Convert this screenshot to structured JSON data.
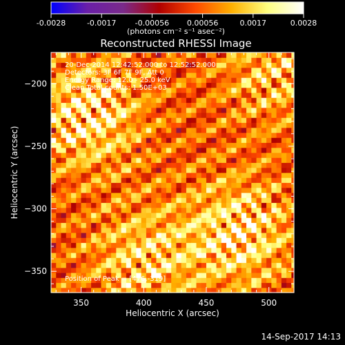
{
  "chart_data": {
    "type": "heatmap",
    "title": "Reconstructed RHESSI Image",
    "xlabel": "Heliocentric X (arcsec)",
    "ylabel": "Heliocentric Y (arcsec)",
    "xlim": [
      326,
      520
    ],
    "ylim": [
      -367,
      -175
    ],
    "x_ticks": [
      350,
      400,
      450,
      500
    ],
    "y_ticks": [
      -200,
      -250,
      -300,
      -350
    ],
    "colorbar": {
      "range": [
        -0.0028,
        0.0028
      ],
      "ticks": [
        "-0.0028",
        "-0.0017",
        "-0.00056",
        "0.00056",
        "0.0017",
        "0.0028"
      ],
      "unit_label": "(photons cm⁻² s⁻¹ asec⁻²)",
      "colors": [
        "#0000ff",
        "#6a1fa8",
        "#7a2a8a",
        "#b00000",
        "#ff4a00",
        "#ffb000",
        "#ffff80",
        "#ffffff"
      ]
    },
    "annotations": [
      "20-Dec-2014 12:42:52.000 to 12:52:52.000",
      "Detectors: 3F 6F 7F 9F, Att 0",
      "Energy Range: 12.0 - 25.0 keV",
      "Clean    Total counts: 1.50E+03"
    ],
    "peak_label": "Position of Peak = [476,-319]",
    "peak": [
      476,
      -319
    ],
    "sources": [
      {
        "x": 355,
        "y": -225,
        "amp": 0.0028
      },
      {
        "x": 400,
        "y": -340,
        "amp": 0.0022
      },
      {
        "x": 476,
        "y": -319,
        "amp": 0.0028
      },
      {
        "x": 505,
        "y": -190,
        "amp": 0.0018
      }
    ]
  },
  "footer_timestamp": "14-Sep-2017 14:13"
}
